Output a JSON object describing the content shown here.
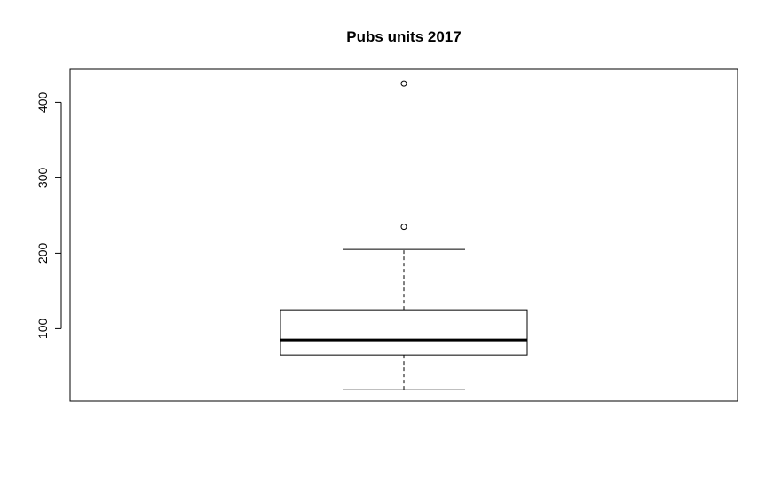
{
  "chart_data": {
    "type": "boxplot",
    "title": "Pubs units 2017",
    "xlabel": "",
    "ylabel": "",
    "ylim": [
      4,
      444
    ],
    "yticks": [
      100,
      200,
      300,
      400
    ],
    "grid": false,
    "box": {
      "whisker_low": 19,
      "q1": 65,
      "median": 85,
      "q3": 125,
      "whisker_high": 205,
      "outliers": [
        235,
        425
      ]
    }
  }
}
